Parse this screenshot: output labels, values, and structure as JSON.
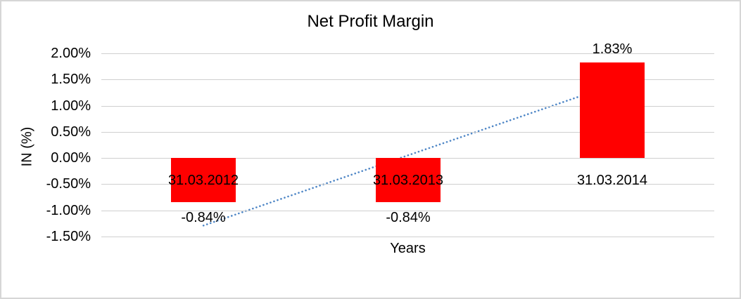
{
  "chart_data": {
    "type": "bar",
    "title": "Net Profit Margin",
    "xlabel": "Years",
    "ylabel": "IN (%)",
    "categories": [
      "31.03.2012",
      "31.03.2013",
      "31.03.2014"
    ],
    "values": [
      -0.84,
      -0.84,
      1.83
    ],
    "value_labels": [
      "-0.84%",
      "-0.84%",
      "1.83%"
    ],
    "ylim": [
      -1.5,
      2.0
    ],
    "ytick_step": 0.5,
    "ytick_labels": [
      "2.00%",
      "1.50%",
      "1.00%",
      "0.50%",
      "0.00%",
      "-0.50%",
      "-1.00%",
      "-1.50%"
    ],
    "ytick_values": [
      2.0,
      1.5,
      1.0,
      0.5,
      0.0,
      -0.5,
      -1.0,
      -1.5
    ],
    "grid": true,
    "legend": "none",
    "bar_color": "#ff0000",
    "gridline_color": "#cfcfcf",
    "trendline": {
      "type": "linear",
      "style": "dotted",
      "color": "#4e86c6",
      "start_value": -1.29,
      "end_value": 1.39
    }
  }
}
